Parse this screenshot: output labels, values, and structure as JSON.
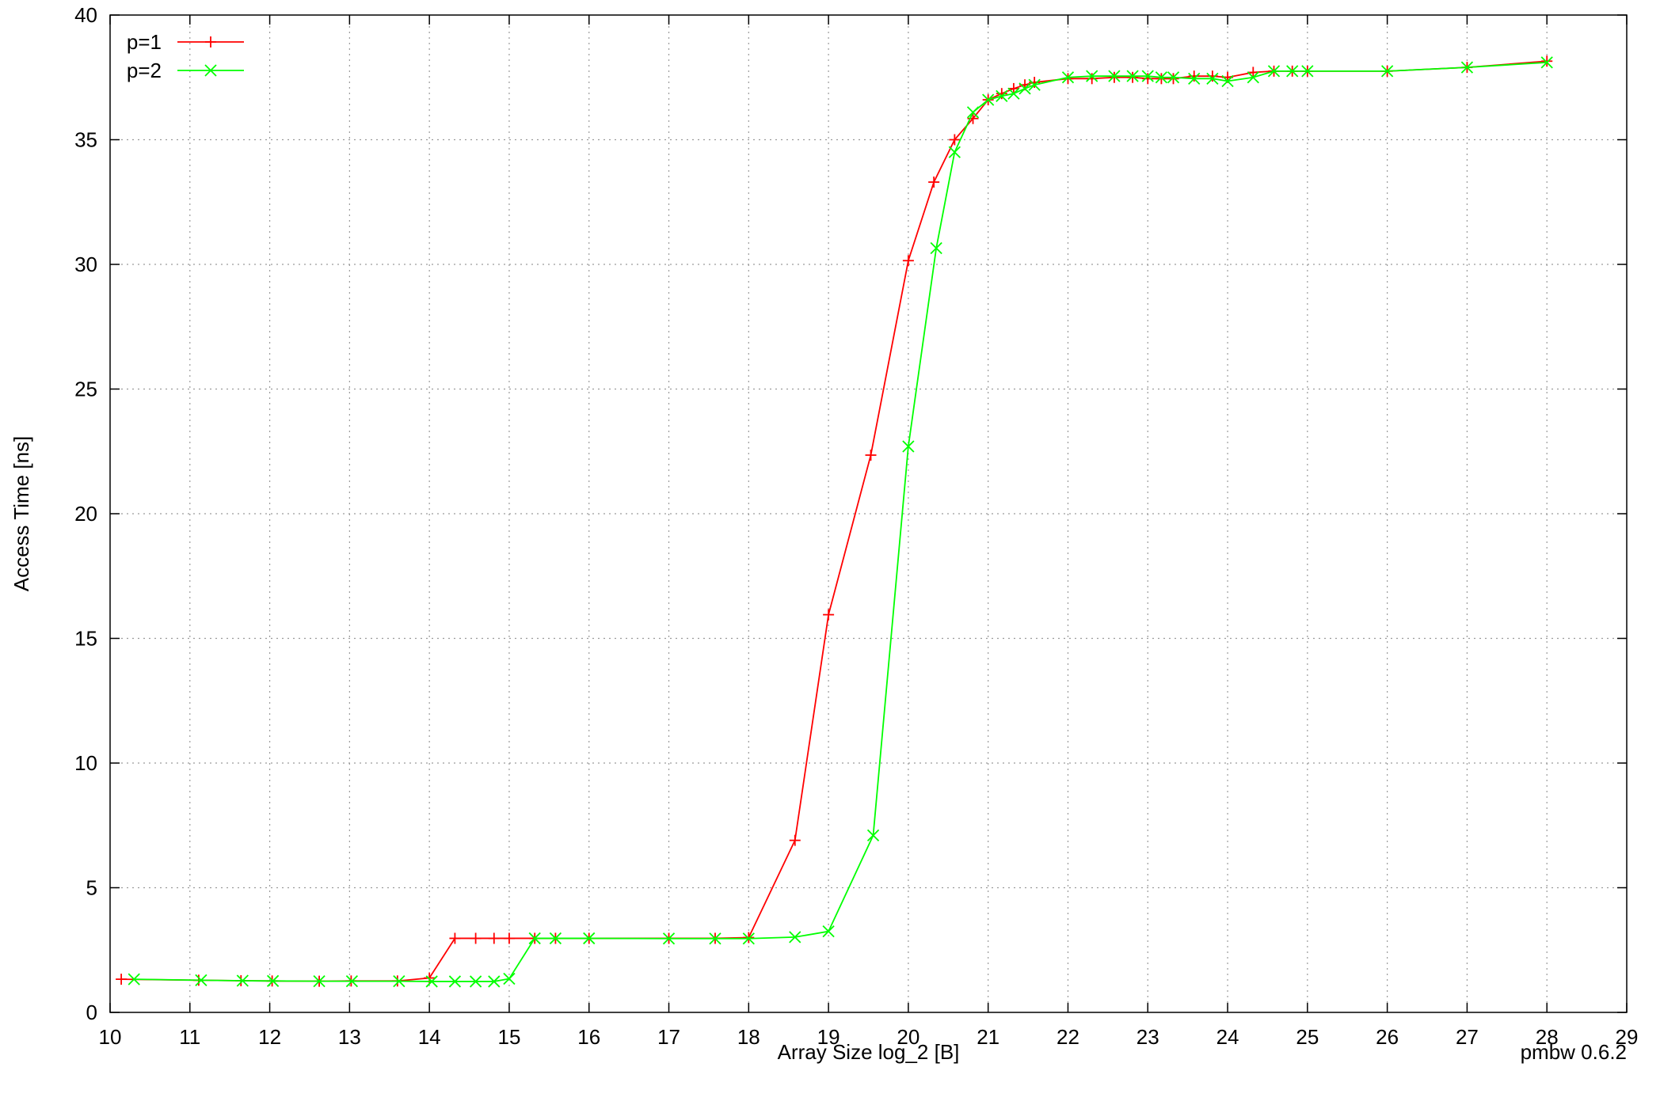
{
  "chart_data": {
    "type": "line",
    "xlabel": "Array Size log_2 [B]",
    "ylabel": "Access Time [ns]",
    "xlim": [
      10,
      29
    ],
    "ylim": [
      0,
      40
    ],
    "xticks": [
      10,
      11,
      12,
      13,
      14,
      15,
      16,
      17,
      18,
      19,
      20,
      21,
      22,
      23,
      24,
      25,
      26,
      27,
      28,
      29
    ],
    "yticks": [
      0,
      5,
      10,
      15,
      20,
      25,
      30,
      35,
      40
    ],
    "grid": true,
    "legend_position": "top-left",
    "footer": "pmbw 0.6.2",
    "series": [
      {
        "name": "p=1",
        "color": "#ff0000",
        "marker": "plus",
        "points": [
          [
            10.14,
            1.33
          ],
          [
            11.11,
            1.29
          ],
          [
            11.64,
            1.27
          ],
          [
            12.03,
            1.26
          ],
          [
            12.62,
            1.25
          ],
          [
            13.02,
            1.26
          ],
          [
            13.6,
            1.26
          ],
          [
            14.0,
            1.38
          ],
          [
            14.32,
            2.97
          ],
          [
            14.58,
            2.97
          ],
          [
            14.81,
            2.97
          ],
          [
            15.0,
            2.97
          ],
          [
            15.32,
            2.97
          ],
          [
            15.58,
            2.97
          ],
          [
            16.0,
            2.97
          ],
          [
            17.0,
            2.97
          ],
          [
            17.58,
            2.97
          ],
          [
            18.0,
            3.0
          ],
          [
            18.58,
            6.9
          ],
          [
            19.0,
            15.95
          ],
          [
            19.53,
            22.35
          ],
          [
            20.0,
            30.15
          ],
          [
            20.32,
            33.3
          ],
          [
            20.58,
            35.0
          ],
          [
            20.81,
            35.85
          ],
          [
            21.0,
            36.6
          ],
          [
            21.17,
            36.85
          ],
          [
            21.32,
            37.05
          ],
          [
            21.46,
            37.2
          ],
          [
            21.58,
            37.3
          ],
          [
            22.0,
            37.45
          ],
          [
            22.3,
            37.45
          ],
          [
            22.58,
            37.5
          ],
          [
            22.81,
            37.5
          ],
          [
            23.0,
            37.45
          ],
          [
            23.17,
            37.45
          ],
          [
            23.32,
            37.45
          ],
          [
            23.58,
            37.55
          ],
          [
            23.81,
            37.55
          ],
          [
            24.0,
            37.5
          ],
          [
            24.32,
            37.7
          ],
          [
            24.58,
            37.75
          ],
          [
            24.81,
            37.75
          ],
          [
            25.0,
            37.75
          ],
          [
            26.0,
            37.75
          ],
          [
            27.0,
            37.9
          ],
          [
            28.0,
            38.15
          ]
        ]
      },
      {
        "name": "p=2",
        "color": "#00ff00",
        "marker": "cross",
        "points": [
          [
            10.3,
            1.33
          ],
          [
            11.14,
            1.29
          ],
          [
            11.66,
            1.27
          ],
          [
            12.04,
            1.26
          ],
          [
            12.62,
            1.25
          ],
          [
            13.03,
            1.25
          ],
          [
            13.62,
            1.25
          ],
          [
            14.03,
            1.24
          ],
          [
            14.32,
            1.24
          ],
          [
            14.58,
            1.24
          ],
          [
            14.81,
            1.24
          ],
          [
            15.0,
            1.35
          ],
          [
            15.32,
            2.97
          ],
          [
            15.58,
            2.97
          ],
          [
            16.0,
            2.97
          ],
          [
            17.0,
            2.96
          ],
          [
            17.58,
            2.96
          ],
          [
            18.0,
            2.96
          ],
          [
            18.58,
            3.02
          ],
          [
            19.0,
            3.25
          ],
          [
            19.56,
            7.1
          ],
          [
            20.0,
            22.7
          ],
          [
            20.35,
            30.65
          ],
          [
            20.58,
            34.5
          ],
          [
            20.81,
            36.1
          ],
          [
            21.0,
            36.6
          ],
          [
            21.17,
            36.75
          ],
          [
            21.32,
            36.85
          ],
          [
            21.46,
            37.05
          ],
          [
            21.58,
            37.2
          ],
          [
            22.0,
            37.5
          ],
          [
            22.3,
            37.55
          ],
          [
            22.58,
            37.55
          ],
          [
            22.81,
            37.55
          ],
          [
            23.0,
            37.55
          ],
          [
            23.17,
            37.5
          ],
          [
            23.32,
            37.5
          ],
          [
            23.58,
            37.45
          ],
          [
            23.81,
            37.45
          ],
          [
            24.0,
            37.35
          ],
          [
            24.32,
            37.5
          ],
          [
            24.58,
            37.75
          ],
          [
            24.81,
            37.75
          ],
          [
            25.0,
            37.75
          ],
          [
            26.0,
            37.75
          ],
          [
            27.0,
            37.9
          ],
          [
            28.0,
            38.1
          ]
        ]
      }
    ]
  }
}
